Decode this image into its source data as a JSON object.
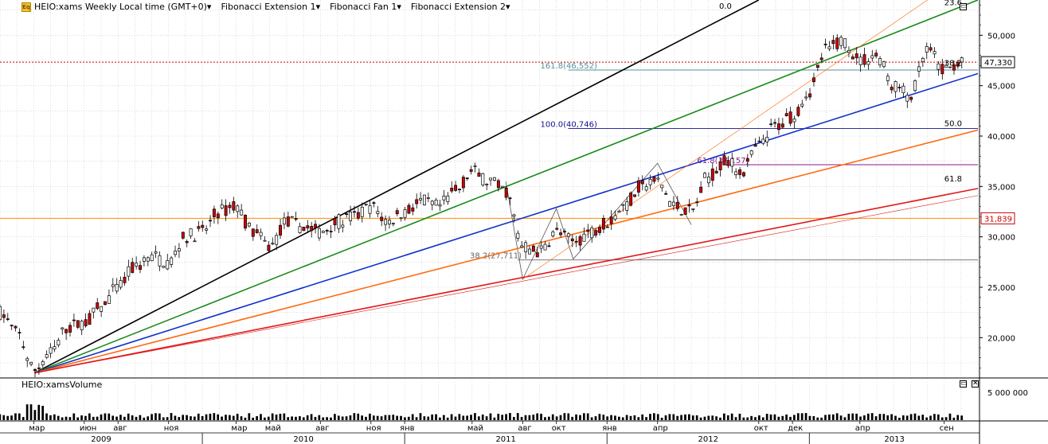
{
  "header": {
    "logo_icon": "chart-logo-icon",
    "symbol_title": "HEIO:xams Weekly Local time (GMT+0)",
    "studies": [
      "Fibonacci Extension 1",
      "Fibonacci Fan 1",
      "Fibonacci Extension 2"
    ]
  },
  "volume_pane": {
    "title": "HEIO:xamsVolume",
    "axis_label": "5 000 000"
  },
  "price_labels": {
    "last_price": "47,330",
    "last_price_value": 47330,
    "horizontal_line": "31,839",
    "horizontal_line_value": 31839
  },
  "colors": {
    "candle_up": "#ffffff",
    "candle_down": "#cc0000",
    "grid": "#c8c8c8",
    "fan_black": "#000000",
    "fan_green": "#1a8a1a",
    "fan_blue": "#1030c8",
    "fan_orange": "#ff6a10",
    "fan_red": "#e01818",
    "last_price_line": "#cc0000",
    "horizontal_line": "#ff8c00"
  },
  "chart_data": {
    "type": "candlestick",
    "title": "HEIO:xams Weekly Local time (GMT+0)",
    "y_axis": {
      "ticks": [
        "20,000",
        "25,000",
        "30,000",
        "35,000",
        "40,000",
        "45,000",
        "50,000"
      ],
      "tick_values": [
        20000,
        25000,
        30000,
        35000,
        40000,
        45000,
        50000
      ],
      "range": [
        16000,
        53500
      ]
    },
    "x_axis": {
      "months": [
        "мар",
        "июн",
        "авг",
        "ноя",
        "мар",
        "май",
        "авг",
        "ноя",
        "янв",
        "май",
        "авг",
        "окт",
        "янв",
        "апр",
        "окт",
        "дек",
        "апр",
        "сен"
      ],
      "month_dates": [
        "2009-03",
        "2009-06",
        "2009-08",
        "2009-11",
        "2010-03",
        "2010-05",
        "2010-08",
        "2010-11",
        "2011-01",
        "2011-05",
        "2011-08",
        "2011-10",
        "2012-01",
        "2012-04",
        "2012-10",
        "2012-12",
        "2013-04",
        "2013-09"
      ],
      "years": [
        "2009",
        "2010",
        "2011",
        "2012",
        "2013"
      ],
      "range": [
        "2009-01",
        "2013-11"
      ]
    },
    "price_path": [
      [
        "2009-01",
        22500
      ],
      [
        "2009-02",
        20500
      ],
      [
        "2009-03",
        16800
      ],
      [
        "2009-04",
        18500
      ],
      [
        "2009-05",
        21000
      ],
      [
        "2009-06",
        21500
      ],
      [
        "2009-07",
        23000
      ],
      [
        "2009-08",
        25000
      ],
      [
        "2009-09",
        27000
      ],
      [
        "2009-10",
        28000
      ],
      [
        "2009-11",
        27500
      ],
      [
        "2009-12",
        30000
      ],
      [
        "2010-01",
        30500
      ],
      [
        "2010-02",
        32500
      ],
      [
        "2010-03",
        33000
      ],
      [
        "2010-04",
        30500
      ],
      [
        "2010-05",
        29000
      ],
      [
        "2010-06",
        31500
      ],
      [
        "2010-07",
        31000
      ],
      [
        "2010-08",
        30500
      ],
      [
        "2010-09",
        31500
      ],
      [
        "2010-10",
        32000
      ],
      [
        "2010-11",
        33000
      ],
      [
        "2010-12",
        31500
      ],
      [
        "2011-01",
        32500
      ],
      [
        "2011-02",
        33500
      ],
      [
        "2011-03",
        33000
      ],
      [
        "2011-04",
        34500
      ],
      [
        "2011-05",
        36500
      ],
      [
        "2011-06",
        35500
      ],
      [
        "2011-07",
        34500
      ],
      [
        "2011-08",
        29000
      ],
      [
        "2011-09",
        28500
      ],
      [
        "2011-10",
        30500
      ],
      [
        "2011-11",
        29500
      ],
      [
        "2011-12",
        30500
      ],
      [
        "2012-01",
        31500
      ],
      [
        "2012-02",
        33000
      ],
      [
        "2012-03",
        35000
      ],
      [
        "2012-04",
        35500
      ],
      [
        "2012-05",
        33000
      ],
      [
        "2012-06",
        32500
      ],
      [
        "2012-07",
        36000
      ],
      [
        "2012-08",
        37500
      ],
      [
        "2012-09",
        36500
      ],
      [
        "2012-10",
        39000
      ],
      [
        "2012-11",
        41000
      ],
      [
        "2012-12",
        42000
      ],
      [
        "2013-01",
        44500
      ],
      [
        "2013-02",
        48500
      ],
      [
        "2013-03",
        49500
      ],
      [
        "2013-04",
        47500
      ],
      [
        "2013-05",
        48000
      ],
      [
        "2013-06",
        45000
      ],
      [
        "2013-07",
        44000
      ],
      [
        "2013-08",
        48500
      ],
      [
        "2013-09",
        46500
      ],
      [
        "2013-10",
        47330
      ]
    ],
    "fibonacci_fan": {
      "origin": [
        "2009-03",
        16500
      ],
      "lines": [
        {
          "label": "0.0",
          "color": "black",
          "to": [
            "2012-10",
            53500
          ]
        },
        {
          "label": "23.6",
          "color": "green",
          "to": [
            "2013-11",
            53500
          ]
        },
        {
          "label": "38.2",
          "color": "blue",
          "to": [
            "2013-11",
            46200
          ]
        },
        {
          "label": "50.0",
          "color": "orange",
          "to": [
            "2013-11",
            40600
          ]
        },
        {
          "label": "61.8",
          "color": "red",
          "to": [
            "2013-11",
            34800
          ]
        }
      ]
    },
    "fibonacci_extension_1": {
      "levels": [
        {
          "label": "38.2(27,711)",
          "value": 27711
        },
        {
          "label": "61.8(37,157)",
          "value": 37157
        },
        {
          "label": "100.0(40,746)",
          "value": 40746
        },
        {
          "label": "161.8(46,552)",
          "value": 46552
        }
      ]
    },
    "horizontal_line": 31839,
    "last_price": 47330,
    "volume": {
      "axis_tick": "5 000 000",
      "axis_tick_value": 5000000
    }
  }
}
